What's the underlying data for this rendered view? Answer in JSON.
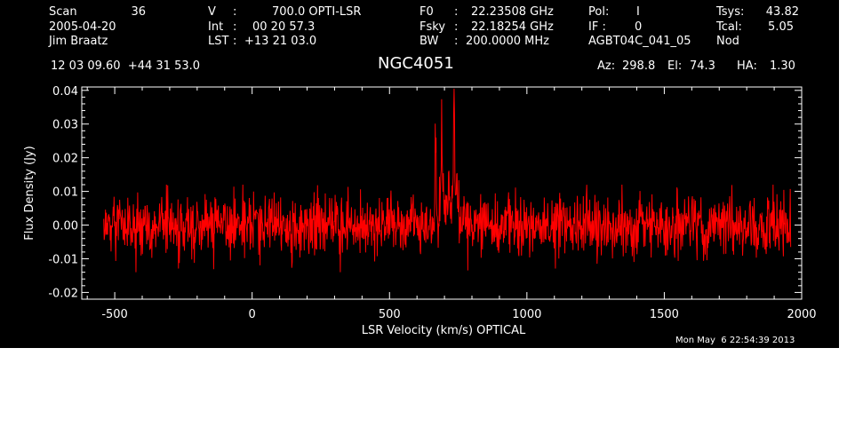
{
  "header": {
    "scan_label": "Scan",
    "scan_value": "36",
    "date": "2005-04-20",
    "observer": "Jim Braatz",
    "v_label": "V",
    "v_value": "700.0 OPTI-LSR",
    "int_label": "Int",
    "int_value": "00 20 57.3",
    "lst_label": "LST",
    "lst_value": "+13 21 03.0",
    "f0_label": "F0",
    "f0_value": "22.23508 GHz",
    "fsky_label": "Fsky",
    "fsky_value": "22.18254 GHz",
    "bw_label": "BW",
    "bw_value": "200.0000 MHz",
    "pol_label": "Pol:",
    "pol_value": "I",
    "if_label": "IF :",
    "if_value": "0",
    "project": "AGBT04C_041_05",
    "tsys_label": "Tsys:",
    "tsys_value": "43.82",
    "tcal_label": "Tcal:",
    "tcal_value": "5.05",
    "mode": "Nod",
    "ra_dec": "12 03 09.60  +44 31 53.0",
    "source": "NGC4051",
    "az_label": "Az:",
    "az_value": "298.8",
    "el_label": "El:",
    "el_value": "74.3",
    "ha_label": "HA:",
    "ha_value": "1.30"
  },
  "footer": {
    "timestamp": "Mon May  6 22:54:39 2013"
  },
  "colors": {
    "background": "#000000",
    "axes": "#ffffff",
    "trace": "#ff0000"
  },
  "chart_data": {
    "type": "line",
    "title": "NGC4051",
    "xlabel": "LSR Velocity (km/s) OPTICAL",
    "ylabel": "Flux Density (Jy)",
    "xlim": [
      -620,
      2000
    ],
    "ylim": [
      -0.022,
      0.041
    ],
    "x_ticks": [
      -500,
      0,
      500,
      1000,
      1500,
      2000
    ],
    "x_tick_labels": [
      "-500",
      "0",
      "500",
      "1000",
      "1500",
      "2000"
    ],
    "y_ticks": [
      -0.02,
      -0.01,
      0.0,
      0.01,
      0.02,
      0.03,
      0.04
    ],
    "y_tick_labels": [
      "-0.02",
      "-0.01",
      "0.00",
      "0.01",
      "0.02",
      "0.03",
      "0.04"
    ],
    "grid": false,
    "series": [
      {
        "color": "#ff0000",
        "x_range": [
          -540,
          1960
        ],
        "noise_rms": 0.0045,
        "noise_span": [
          -0.014,
          0.012
        ],
        "features": [
          {
            "x": 668,
            "peak": 0.034
          },
          {
            "x": 690,
            "peak": 0.029
          },
          {
            "x": 735,
            "peak": 0.039
          },
          {
            "x": 745,
            "peak": 0.02
          },
          {
            "x": 715,
            "peak": 0.016
          }
        ]
      }
    ]
  }
}
